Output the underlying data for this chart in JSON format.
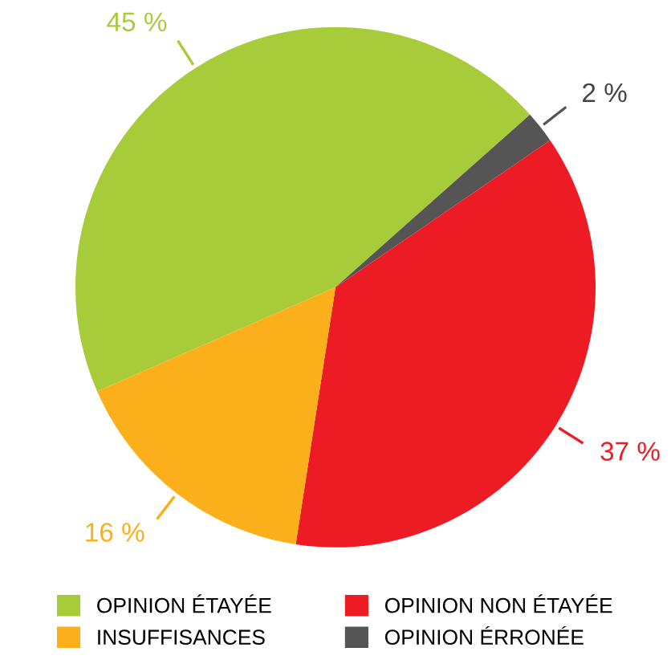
{
  "chart_data": {
    "type": "pie",
    "categories": [
      "OPINION ÉTAYÉE",
      "OPINION ÉRRONÉE",
      "OPINION NON ÉTAYÉE",
      "INSUFFISANCES"
    ],
    "values": [
      45,
      2,
      37,
      16
    ],
    "colors": [
      "#a8cb3a",
      "#555555",
      "#ed1c24",
      "#fbb01b"
    ],
    "value_labels": [
      "45 %",
      "2 %",
      "37 %",
      "16 %"
    ],
    "legend": "bottom"
  }
}
